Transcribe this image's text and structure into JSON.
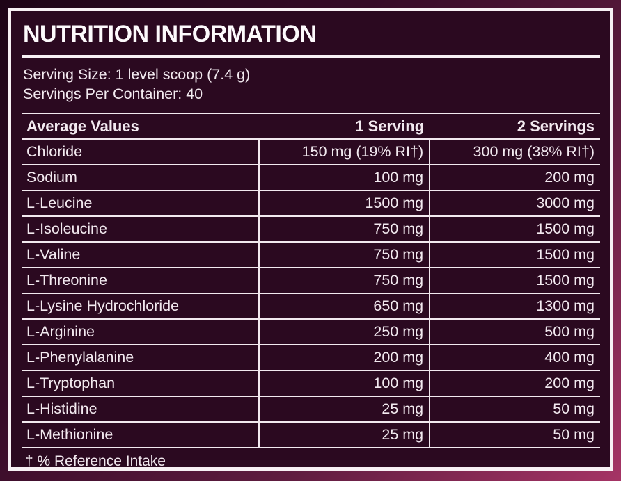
{
  "label": {
    "title": "NUTRITION INFORMATION",
    "serving_size": "Serving Size: 1 level scoop (7.4 g)",
    "servings_per_container": "Servings Per Container: 40",
    "footnote": "† % Reference Intake"
  },
  "table": {
    "headers": {
      "name": "Average Values",
      "serving_1": "1 Serving",
      "serving_2": "2 Servings"
    },
    "rows": [
      {
        "name": "Chloride",
        "serving_1": "150 mg (19% RI†)",
        "serving_2": "300 mg (38% RI†)"
      },
      {
        "name": "Sodium",
        "serving_1": "100 mg",
        "serving_2": "200 mg"
      },
      {
        "name": "L-Leucine",
        "serving_1": "1500 mg",
        "serving_2": "3000 mg"
      },
      {
        "name": "L-Isoleucine",
        "serving_1": "750 mg",
        "serving_2": "1500 mg"
      },
      {
        "name": "L-Valine",
        "serving_1": "750 mg",
        "serving_2": "1500 mg"
      },
      {
        "name": "L-Threonine",
        "serving_1": "750 mg",
        "serving_2": "1500 mg"
      },
      {
        "name": "L-Lysine Hydrochloride",
        "serving_1": "650 mg",
        "serving_2": "1300 mg"
      },
      {
        "name": "L-Arginine",
        "serving_1": "250 mg",
        "serving_2": "500 mg"
      },
      {
        "name": "L-Phenylalanine",
        "serving_1": "200 mg",
        "serving_2": "400 mg"
      },
      {
        "name": "L-Tryptophan",
        "serving_1": "100 mg",
        "serving_2": "200 mg"
      },
      {
        "name": "L-Histidine",
        "serving_1": "25 mg",
        "serving_2": "50 mg"
      },
      {
        "name": "L-Methionine",
        "serving_1": "25 mg",
        "serving_2": "50 mg"
      }
    ]
  },
  "colors": {
    "outer_background_gradient": [
      "#1e0417",
      "#360a27",
      "#5e1c3f",
      "#a53465"
    ],
    "panel_background": "#2b0920",
    "panel_border": "#f7f0f4",
    "text": "#f2e9ef",
    "title_text": "#fdfafc",
    "rule_lines": "#f2e9ef"
  }
}
